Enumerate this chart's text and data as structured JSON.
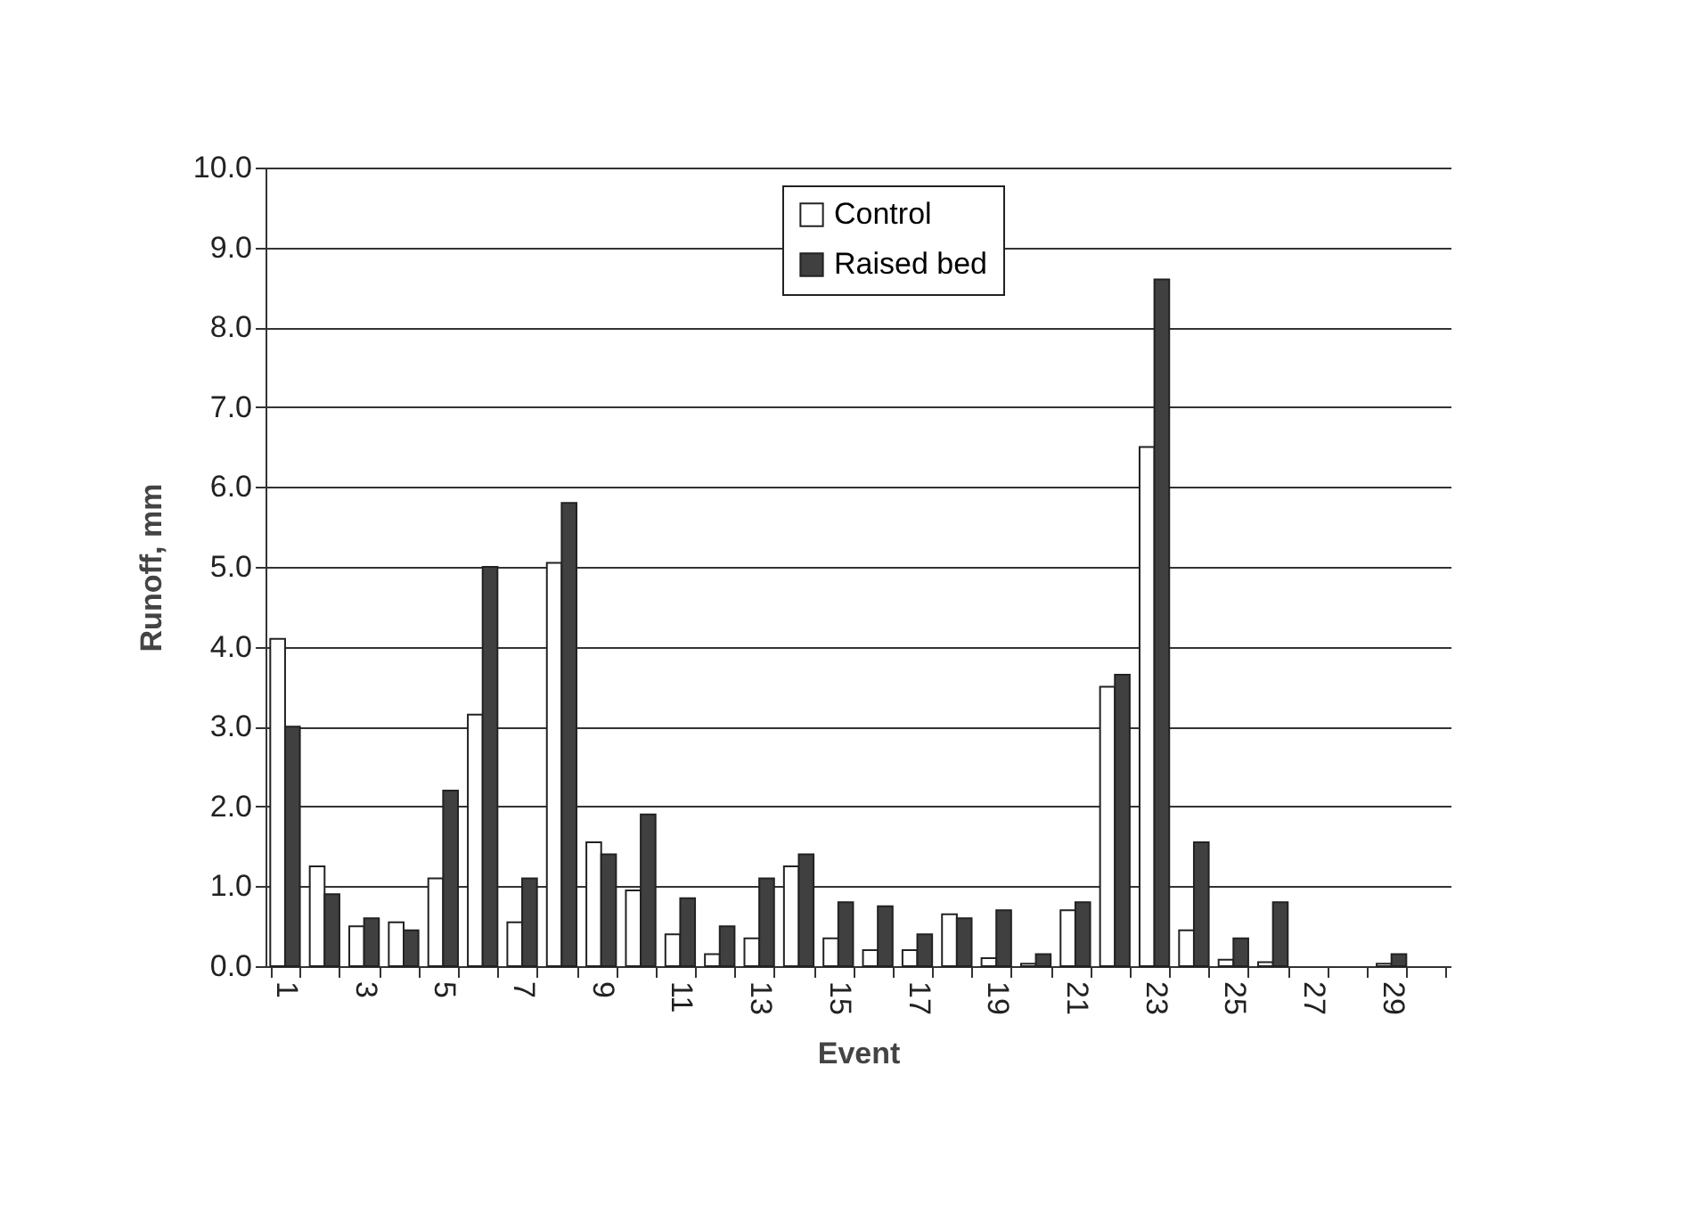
{
  "chart_data": {
    "type": "bar",
    "xlabel": "Event",
    "ylabel": "Runoff, mm",
    "categories": [
      "1",
      null,
      "3",
      null,
      "5",
      null,
      "7",
      null,
      "9",
      null,
      "11",
      null,
      "13",
      null,
      "15",
      null,
      "17",
      null,
      "19",
      null,
      "21",
      null,
      "23",
      null,
      "25",
      null,
      "27",
      null,
      "29",
      null
    ],
    "series": [
      {
        "name": "Control",
        "color": "#ffffff",
        "values": [
          4.1,
          1.25,
          0.5,
          0.55,
          1.1,
          3.15,
          0.55,
          5.05,
          1.55,
          0.95,
          0.4,
          0.15,
          0.35,
          1.25,
          0.35,
          0.2,
          0.2,
          0.65,
          0.1,
          0.03,
          0.7,
          3.5,
          6.5,
          0.45,
          0.08,
          0.05,
          null,
          null,
          0.03,
          null
        ]
      },
      {
        "name": "Raised bed",
        "color": "#404040",
        "values": [
          3.0,
          0.9,
          0.6,
          0.45,
          2.2,
          5.0,
          1.1,
          5.8,
          1.4,
          1.9,
          0.85,
          0.5,
          1.1,
          1.4,
          0.8,
          0.75,
          0.4,
          0.6,
          0.7,
          0.15,
          0.8,
          3.65,
          8.6,
          1.55,
          0.35,
          0.8,
          null,
          null,
          0.15,
          null
        ]
      }
    ],
    "ylim": [
      0,
      10
    ],
    "yticks": [
      {
        "value": 0,
        "label": "0.0"
      },
      {
        "value": 1,
        "label": "1.0"
      },
      {
        "value": 2,
        "label": "2.0"
      },
      {
        "value": 3,
        "label": "3.0"
      },
      {
        "value": 4,
        "label": "4.0"
      },
      {
        "value": 5,
        "label": "5.0"
      },
      {
        "value": 6,
        "label": "6.0"
      },
      {
        "value": 7,
        "label": "7.0"
      },
      {
        "value": 8,
        "label": "8.0"
      },
      {
        "value": 9,
        "label": "9.0"
      },
      {
        "value": 10,
        "label": "10.0"
      }
    ],
    "grid": "y",
    "legend": "top"
  }
}
